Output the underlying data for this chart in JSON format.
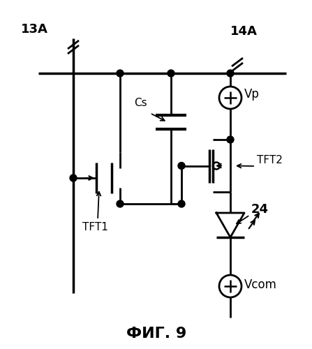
{
  "title": "ФИГ. 9",
  "label_13A": "13А",
  "label_14A": "14А",
  "label_Vp": "Vp",
  "label_Vcom": "Vcom",
  "label_Cs": "Cs",
  "label_TFT1": "TFT1",
  "label_TFT2": "TFT2",
  "label_24": "24",
  "bg_color": "#ffffff",
  "line_color": "#000000",
  "lw": 2.0
}
